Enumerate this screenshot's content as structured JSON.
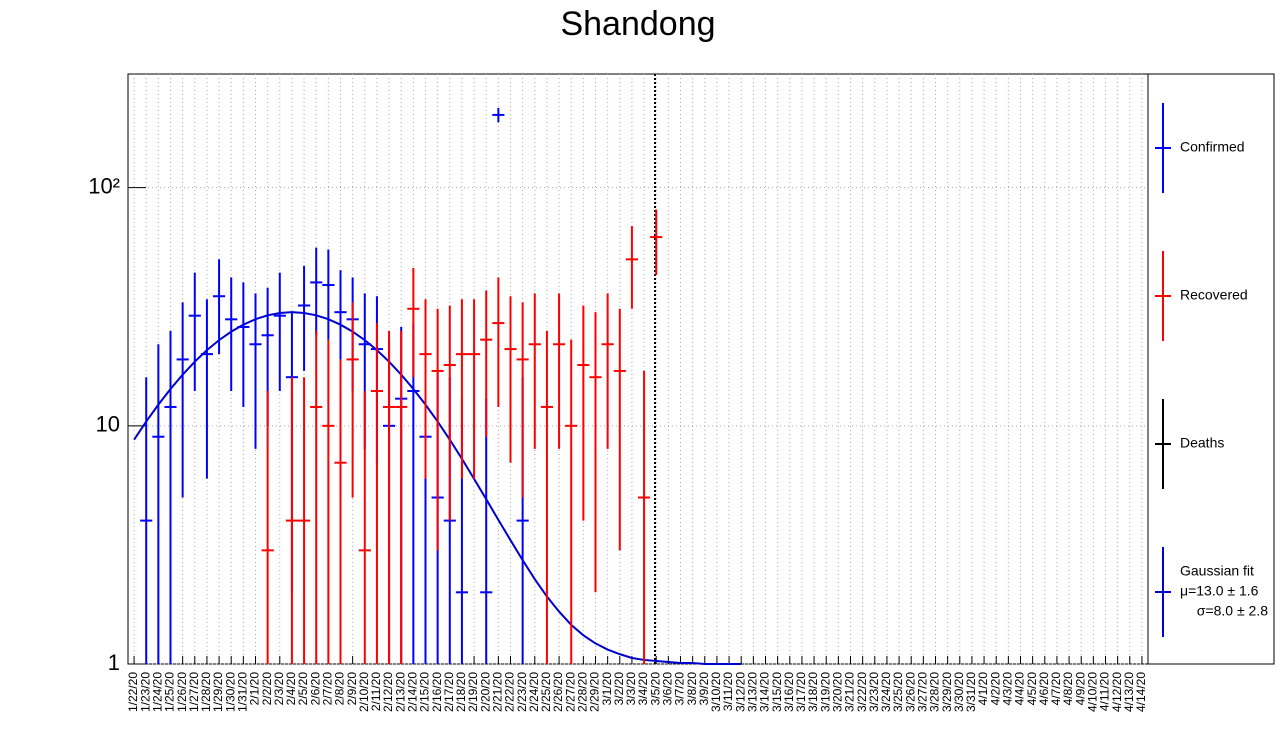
{
  "chart_data": {
    "type": "errorbar",
    "title": "Shandong",
    "log_y": true,
    "grid": true,
    "legend": "right",
    "ylim": [
      1,
      300
    ],
    "yticks": [
      1,
      10,
      {
        "value": 100,
        "label": "10²"
      }
    ],
    "categories": [
      "1/22/20",
      "1/23/20",
      "1/24/20",
      "1/25/20",
      "1/26/20",
      "1/27/20",
      "1/28/20",
      "1/29/20",
      "1/30/20",
      "1/31/20",
      "2/1/20",
      "2/2/20",
      "2/3/20",
      "2/4/20",
      "2/5/20",
      "2/6/20",
      "2/7/20",
      "2/8/20",
      "2/9/20",
      "2/10/20",
      "2/11/20",
      "2/12/20",
      "2/13/20",
      "2/14/20",
      "2/15/20",
      "2/16/20",
      "2/17/20",
      "2/18/20",
      "2/19/20",
      "2/20/20",
      "2/21/20",
      "2/22/20",
      "2/23/20",
      "2/24/20",
      "2/25/20",
      "2/26/20",
      "2/27/20",
      "2/28/20",
      "2/29/20",
      "3/1/20",
      "3/2/20",
      "3/3/20",
      "3/4/20",
      "3/5/20",
      "3/6/20",
      "3/7/20",
      "3/8/20",
      "3/9/20",
      "3/10/20",
      "3/11/20",
      "3/12/20",
      "3/13/20",
      "3/14/20",
      "3/15/20",
      "3/16/20",
      "3/17/20",
      "3/18/20",
      "3/19/20",
      "3/20/20",
      "3/21/20",
      "3/22/20",
      "3/23/20",
      "3/24/20",
      "3/25/20",
      "3/26/20",
      "3/27/20",
      "3/28/20",
      "3/29/20",
      "3/30/20",
      "3/31/20",
      "4/1/20",
      "4/2/20",
      "4/3/20",
      "4/4/20",
      "4/5/20",
      "4/6/20",
      "4/7/20",
      "4/8/20",
      "4/9/20",
      "4/10/20",
      "4/11/20",
      "4/12/20",
      "4/13/20",
      "4/14/20"
    ],
    "series": [
      {
        "name": "Confirmed",
        "color": "#0000ff",
        "values": [
          null,
          4,
          9,
          12,
          19,
          29,
          20,
          35,
          28,
          26,
          22,
          24,
          29,
          16,
          32,
          40,
          39,
          30,
          28,
          22,
          21,
          10,
          13,
          14,
          9,
          5,
          4,
          2,
          null,
          2,
          202,
          null,
          4,
          null,
          null,
          null,
          null,
          null,
          null,
          null,
          null,
          null,
          null,
          null,
          null,
          null,
          null,
          null,
          null,
          null,
          null,
          null,
          null,
          null,
          null,
          null,
          null,
          null,
          null,
          null,
          null,
          null,
          null,
          null,
          null,
          null,
          null,
          null,
          null,
          null,
          null,
          null,
          null,
          null,
          null,
          null,
          null,
          null,
          null,
          null,
          null,
          null,
          null,
          null
        ],
        "errors": [
          null,
          12,
          13,
          13,
          14,
          15,
          14,
          15,
          14,
          14,
          14,
          14,
          15,
          14,
          15,
          16,
          16,
          15,
          14,
          14,
          14,
          13,
          13,
          13,
          13,
          12,
          12,
          11,
          null,
          11,
          14,
          null,
          12,
          null,
          null,
          null,
          null,
          null,
          null,
          null,
          null,
          null,
          null,
          null,
          null,
          null,
          null,
          null,
          null,
          null,
          null,
          null,
          null,
          null,
          null,
          null,
          null,
          null,
          null,
          null,
          null,
          null,
          null,
          null,
          null,
          null,
          null,
          null,
          null,
          null,
          null,
          null,
          null,
          null,
          null,
          null,
          null,
          null,
          null,
          null,
          null,
          null,
          null,
          null
        ]
      },
      {
        "name": "Recovered",
        "color": "#ff0000",
        "values": [
          null,
          null,
          null,
          null,
          null,
          null,
          null,
          null,
          null,
          null,
          null,
          3,
          null,
          4,
          4,
          12,
          10,
          7,
          19,
          3,
          14,
          12,
          12,
          31,
          20,
          17,
          18,
          20,
          20,
          23,
          27,
          21,
          19,
          22,
          12,
          22,
          10,
          18,
          16,
          22,
          17,
          50,
          5,
          62,
          null,
          null,
          null,
          null,
          null,
          null,
          null,
          null,
          null,
          null,
          null,
          null,
          null,
          null,
          null,
          null,
          null,
          null,
          null,
          null,
          null,
          null,
          null,
          null,
          null,
          null,
          null,
          null,
          null,
          null,
          null,
          null,
          null,
          null,
          null,
          null,
          null,
          null,
          null,
          null
        ],
        "errors": [
          null,
          null,
          null,
          null,
          null,
          null,
          null,
          null,
          null,
          null,
          null,
          11,
          null,
          12,
          12,
          13,
          13,
          12,
          14,
          11,
          13,
          13,
          13,
          15,
          14,
          14,
          14,
          14,
          14,
          14,
          15,
          14,
          14,
          14,
          13,
          14,
          13,
          14,
          14,
          14,
          14,
          19,
          12,
          19,
          null,
          null,
          null,
          null,
          null,
          null,
          null,
          null,
          null,
          null,
          null,
          null,
          null,
          null,
          null,
          null,
          null,
          null,
          null,
          null,
          null,
          null,
          null,
          null,
          null,
          null,
          null,
          null,
          null,
          null,
          null,
          null,
          null,
          null,
          null,
          null,
          null,
          null,
          null,
          null
        ]
      },
      {
        "name": "Deaths",
        "color": "#000000",
        "values": [
          null,
          null,
          null,
          null,
          null,
          null,
          null,
          null,
          null,
          null,
          null,
          null,
          null,
          null,
          null,
          null,
          null,
          null,
          null,
          null,
          null,
          null,
          null,
          null,
          null,
          null,
          null,
          null,
          null,
          null,
          null,
          null,
          null,
          null,
          null,
          null,
          null,
          null,
          null,
          null,
          null,
          null,
          null,
          null,
          null,
          null,
          null,
          null,
          null,
          null,
          null,
          null,
          null,
          null,
          null,
          null,
          null,
          null,
          null,
          null,
          null,
          null,
          null,
          null,
          null,
          null,
          null,
          null,
          null,
          null,
          null,
          null,
          null,
          null,
          null,
          null,
          null,
          null,
          null,
          null,
          null,
          null,
          null,
          null
        ]
      }
    ],
    "fit": {
      "name": "Gaussian fit",
      "color": "#0000cc",
      "mean_label": "μ=13.0 ± 1.6",
      "sigma_label": "σ=8.0 ± 2.8",
      "values": [
        8.75,
        10.42,
        12.27,
        14.28,
        16.4,
        18.59,
        20.78,
        22.9,
        24.86,
        26.58,
        28.03,
        29.11,
        29.77,
        30,
        29.77,
        29.11,
        28.03,
        26.58,
        24.86,
        22.9,
        20.78,
        18.59,
        16.4,
        14.28,
        12.27,
        10.42,
        8.75,
        7.27,
        5.99,
        4.92,
        4.03,
        3.31,
        2.73,
        2.27,
        1.92,
        1.66,
        1.46,
        1.32,
        1.22,
        1.15,
        1.1,
        1.06,
        1.04,
        1.03,
        1.02,
        1.01,
        1.01,
        1,
        1,
        1,
        1,
        null,
        null,
        null,
        null,
        null,
        null,
        null,
        null,
        null,
        null,
        null,
        null,
        null,
        null,
        null,
        null,
        null,
        null,
        null,
        null,
        null,
        null,
        null,
        null,
        null,
        null,
        null,
        null,
        null,
        null,
        null,
        null,
        null
      ]
    }
  }
}
